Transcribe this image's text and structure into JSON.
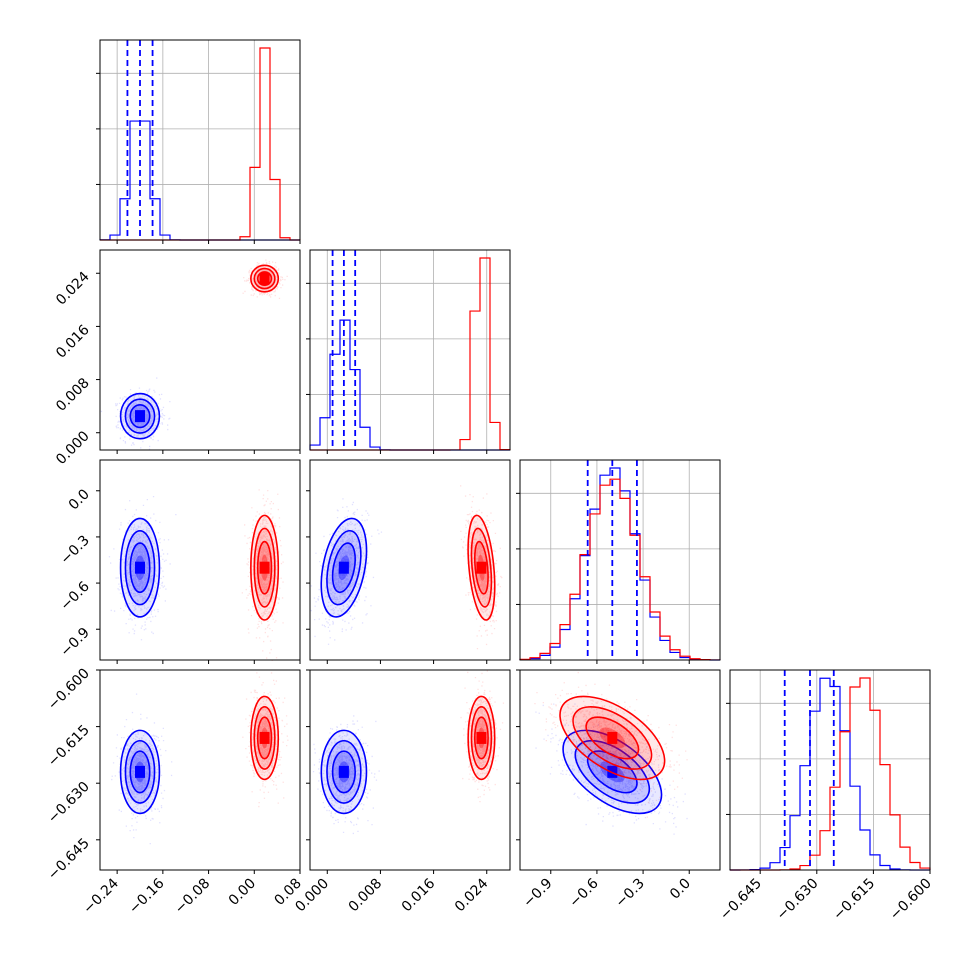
{
  "chart_data": {
    "type": "corner",
    "grid": true,
    "colors": {
      "series_a": "#0000ff",
      "series_b": "#ff0000"
    },
    "series": [
      {
        "color": "#0000ff",
        "mean": [
          -0.2,
          0.0025,
          -0.5,
          -0.627
        ],
        "sd": [
          0.017,
          0.0017,
          0.16,
          0.0055
        ],
        "corr_p3_p4": -0.55,
        "corr_p2_p3": 0.35,
        "quantiles_dashed": [
          [
            -0.222,
            -0.2,
            -0.178
          ],
          [
            0.0008,
            0.0025,
            0.0042
          ],
          [
            -0.66,
            -0.5,
            -0.34
          ],
          [
            -0.6385,
            -0.6318,
            -0.6255
          ]
        ]
      },
      {
        "color": "#ff0000",
        "mean": [
          0.018,
          0.0232,
          -0.5,
          -0.618
        ],
        "sd": [
          0.012,
          0.001,
          0.17,
          0.0055
        ],
        "corr_p3_p4": -0.55,
        "corr_p2_p3": -0.35
      }
    ],
    "axes": [
      {
        "range": [
          -0.27,
          0.08
        ],
        "ticks": [
          -0.24,
          -0.16,
          -0.08,
          0.0,
          0.08
        ],
        "ticklabels": [
          "−0.24",
          "−0.16",
          "−0.08",
          "0.00",
          "0.08"
        ]
      },
      {
        "range": [
          -0.0026,
          0.0275
        ],
        "ticks": [
          0.0,
          0.008,
          0.016,
          0.024
        ],
        "ticklabels": [
          "0.000",
          "0.008",
          "0.016",
          "0.024"
        ]
      },
      {
        "range": [
          -1.1,
          0.2
        ],
        "ticks": [
          -0.9,
          -0.6,
          -0.3,
          0.0
        ],
        "ticklabels": [
          "−0.9",
          "−0.6",
          "−0.3",
          "0.0"
        ]
      },
      {
        "range": [
          -0.653,
          -0.6
        ],
        "ticks": [
          -0.645,
          -0.63,
          -0.615,
          -0.6
        ],
        "ticklabels": [
          "−0.645",
          "−0.630",
          "−0.615",
          "−0.600"
        ]
      }
    ]
  }
}
